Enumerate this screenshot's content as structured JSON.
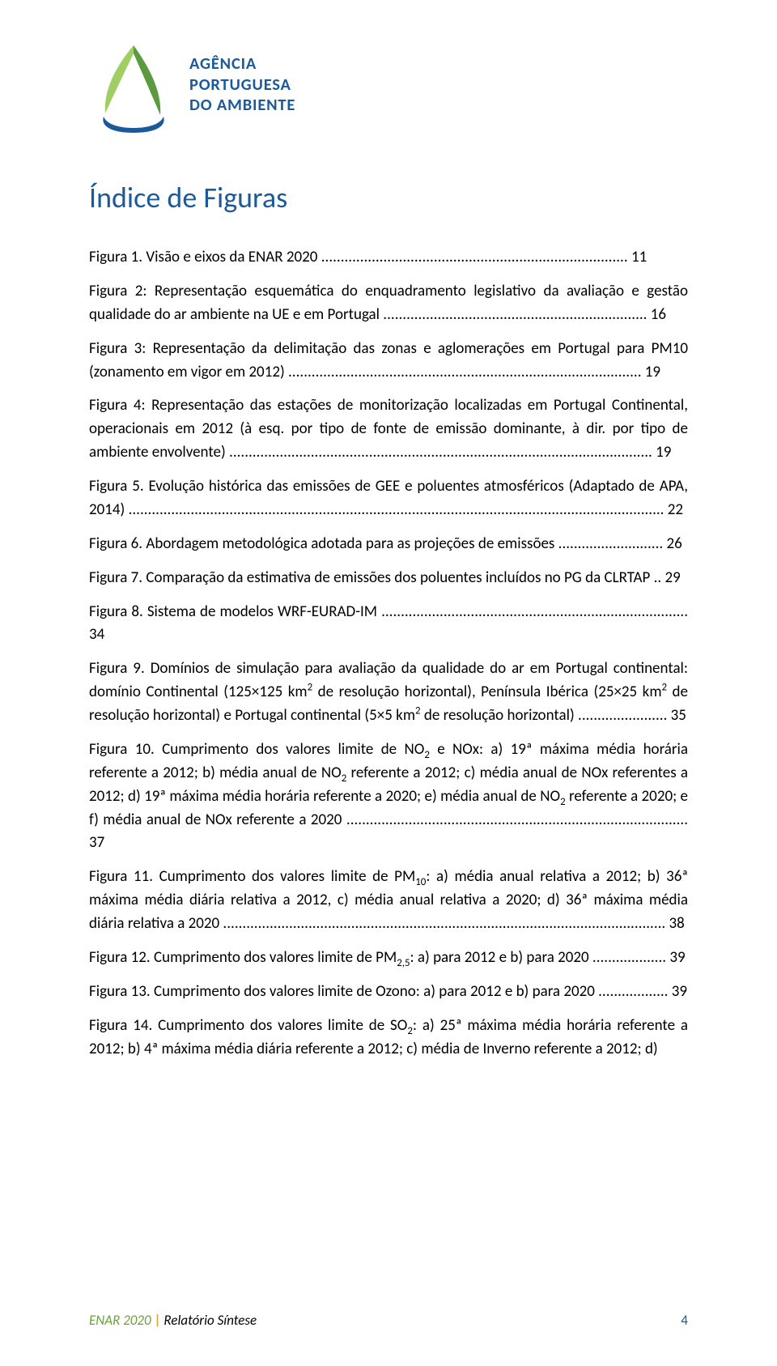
{
  "colors": {
    "page_bg": "#ffffff",
    "text": "#000000",
    "logo_green_dark": "#5b9a3f",
    "logo_green_light": "#9fcf62",
    "logo_blue": "#1b5a9a",
    "enar_green": "#6aa23a",
    "enar_bar": "#d0a838",
    "footer_page": "#1b5a9a"
  },
  "logo": {
    "line1": "AGÊNCIA",
    "line2": "PORTUGUESA",
    "line3": "DO AMBIENTE"
  },
  "heading": "Índice de Figuras",
  "entries": [
    {
      "text": "Figura 1. Visão e eixos da ENAR 2020",
      "leader": "...............................................................................",
      "page": "11"
    },
    {
      "text": "Figura 2: Representação esquemática do enquadramento legislativo da avaliação e gestão qualidade do ar ambiente na UE e em Portugal",
      "leader": "....................................................................",
      "page": "16"
    },
    {
      "text": "Figura 3: Representação da delimitação das zonas e aglomerações em Portugal para PM10 (zonamento em vigor em 2012)",
      "leader": "...........................................................................................",
      "page": "19"
    },
    {
      "text": "Figura 4: Representação das estações de monitorização localizadas em Portugal Continental, operacionais em 2012 (à esq. por tipo de fonte de emissão dominante, à dir. por tipo de ambiente envolvente)",
      "leader": ".............................................................................................................",
      "page": "19"
    },
    {
      "text": "Figura 5. Evolução histórica das emissões de GEE e poluentes atmosféricos (Adaptado de APA, 2014)",
      "leader": "..........................................................................................................................................",
      "page": "22"
    },
    {
      "text": "Figura 6. Abordagem metodológica adotada para as projeções de emissões",
      "leader": "...........................",
      "page": "26"
    },
    {
      "text": "Figura 7. Comparação da estimativa de emissões dos poluentes incluídos no PG da CLRTAP",
      "leader": "..",
      "page": "29"
    },
    {
      "text": "Figura 8. Sistema de modelos WRF-EURAD-IM",
      "leader": "...............................................................................",
      "page": "34"
    },
    {
      "text": "Figura 9. Domínios de simulação para avaliação da qualidade do ar em Portugal continental: domínio Continental (125×125 km<span class=\"sup\">2</span> de resolução horizontal), Península Ibérica (25×25 km<span class=\"sup\">2</span> de resolução horizontal) e Portugal continental (5×5 km<span class=\"sup\">2</span> de resolução horizontal)",
      "leader": ".......................",
      "page": "35"
    },
    {
      "text": "Figura 10. Cumprimento dos valores limite de NO<span class=\"sub\">2</span> e NOx: a) 19ª máxima média horária referente a 2012; b) média anual de NO<span class=\"sub\">2</span> referente a 2012; c) média anual de NOx referentes a 2012; d) 19ª máxima média horária referente a 2020; e) média anual de NO<span class=\"sub\">2</span> referente a 2020; e f) média anual de NOx referente a 2020",
      "leader": "........................................................................................",
      "page": "37"
    },
    {
      "text": "Figura 11. Cumprimento dos valores limite de PM<span class=\"sub\">10</span>: a) média anual relativa a 2012; b) 36ª máxima média diária relativa a 2012, c) média anual relativa a 2020; d) 36ª máxima média diária relativa a 2020",
      "leader": "..................................................................................................................",
      "page": "38"
    },
    {
      "text": "Figura 12. Cumprimento dos valores limite de PM<span class=\"sub\">2,5</span>: a) para 2012 e b) para 2020",
      "leader": "...................",
      "page": "39"
    },
    {
      "text": "Figura 13. Cumprimento dos valores limite de Ozono: a) para 2012 e b) para 2020",
      "leader": "..................",
      "page": "39"
    },
    {
      "text": "Figura 14. Cumprimento dos valores limite de SO<span class=\"sub\">2</span>: a) 25ª máxima média horária referente a 2012; b) 4ª máxima média diária referente a 2012; c) média de Inverno referente a 2012; d)",
      "leader": "",
      "page": ""
    }
  ],
  "footer": {
    "brand": "ENAR 2020",
    "bar": "|",
    "tail": "Relatório Síntese",
    "page_number": "4"
  }
}
